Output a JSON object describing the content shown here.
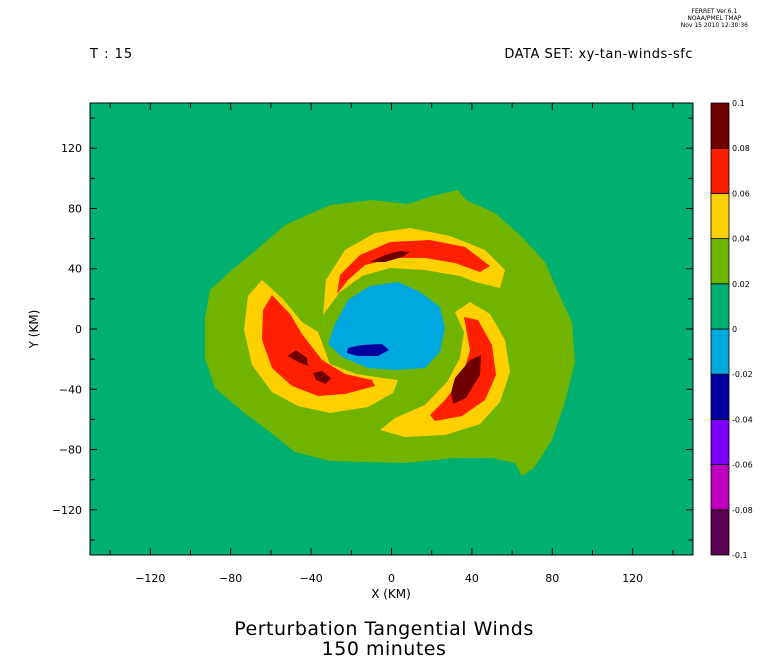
{
  "header": {
    "stamp_line1": "FERRET Ver.6.1",
    "stamp_line2": "NOAA/PMEL TMAP",
    "stamp_line3": "Nov 15 2010 12:30:36",
    "time_label": "T : 15",
    "dataset_label": "DATA SET: xy-tan-winds-sfc"
  },
  "colors": {
    "background": "#ffffff",
    "levels": [
      "#5a0050",
      "#c000c0",
      "#8000ff",
      "#0000a0",
      "#00a8e0",
      "#00b070",
      "#70b400",
      "#ffd000",
      "#ff2000",
      "#700000"
    ]
  },
  "chart_data": {
    "type": "heatmap",
    "title": "Perturbation Tangential Winds",
    "subtitle": "150 minutes",
    "xlabel": "X (KM)",
    "ylabel": "Y (KM)",
    "xlim": [
      -150,
      150
    ],
    "ylim": [
      -150,
      150
    ],
    "x_ticks": [
      -120,
      -80,
      -40,
      0,
      40,
      80,
      120
    ],
    "y_ticks": [
      -120,
      -80,
      -40,
      0,
      40,
      80,
      120
    ],
    "colorbar": {
      "levels": [
        -0.1,
        -0.08,
        -0.06,
        -0.04,
        -0.02,
        0,
        0.02,
        0.04,
        0.06,
        0.08,
        0.1
      ],
      "labels": [
        "-0.1",
        "-0.08",
        "-0.06",
        "-0.04",
        "-0.02",
        "0",
        "0.02",
        "0.04",
        "0.06",
        "0.08",
        "0.1"
      ]
    },
    "background_value_range": [
      0,
      0.02
    ],
    "features": [
      {
        "name": "outer-envelope",
        "range": [
          0.02,
          0.04
        ],
        "extent_x": [
          -92,
          92
        ],
        "extent_y": [
          -95,
          92
        ]
      },
      {
        "name": "arm-north",
        "range": [
          0.04,
          0.1
        ],
        "center": [
          30,
          40
        ],
        "extent_x": [
          -35,
          78
        ]
      },
      {
        "name": "arm-west",
        "range": [
          0.04,
          0.1
        ],
        "center": [
          -55,
          -10
        ],
        "extent_x": [
          -85,
          -5
        ]
      },
      {
        "name": "arm-southeast",
        "range": [
          0.04,
          0.1
        ],
        "center": [
          35,
          -40
        ],
        "extent_x": [
          -10,
          85
        ]
      },
      {
        "name": "core-negative",
        "range": [
          -0.02,
          0
        ],
        "center": [
          5,
          0
        ],
        "extent_x": [
          -30,
          35
        ]
      },
      {
        "name": "core-minimum",
        "range": [
          -0.04,
          -0.02
        ],
        "center": [
          -12,
          -13
        ]
      }
    ]
  }
}
